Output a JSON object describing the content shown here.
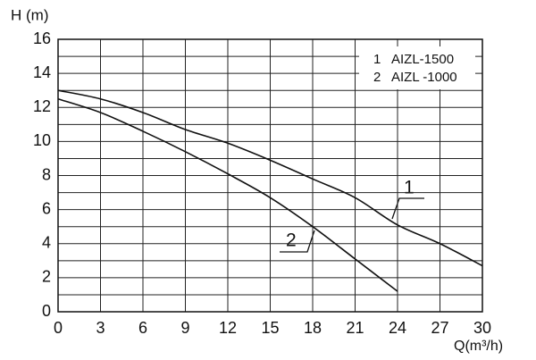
{
  "chart_data": {
    "type": "line",
    "y_label": "H (m)",
    "x_label": "Q(m³/h)",
    "x": [
      0,
      3,
      6,
      9,
      12,
      15,
      18,
      21,
      24,
      27,
      30
    ],
    "series": [
      {
        "label": "1",
        "name": "AIZL-1500",
        "color": "#111111",
        "values": [
          13.0,
          12.5,
          11.7,
          10.7,
          9.9,
          8.9,
          7.8,
          6.7,
          5.1,
          4.0,
          2.7
        ]
      },
      {
        "label": "2",
        "name": "AIZL -1000",
        "color": "#111111",
        "values": [
          12.5,
          11.7,
          10.6,
          9.4,
          8.1,
          6.7,
          5.0,
          3.1,
          1.2,
          null,
          null
        ]
      }
    ],
    "xlim": [
      0,
      30
    ],
    "xticks": [
      0,
      3,
      6,
      9,
      12,
      15,
      18,
      21,
      24,
      27,
      30
    ],
    "ylim": [
      0,
      16
    ],
    "yticks": [
      0,
      2,
      4,
      6,
      8,
      10,
      12,
      14,
      16
    ],
    "y_minor_grid": [
      1,
      3,
      5,
      7,
      9,
      11,
      13,
      15
    ],
    "grid": true
  }
}
